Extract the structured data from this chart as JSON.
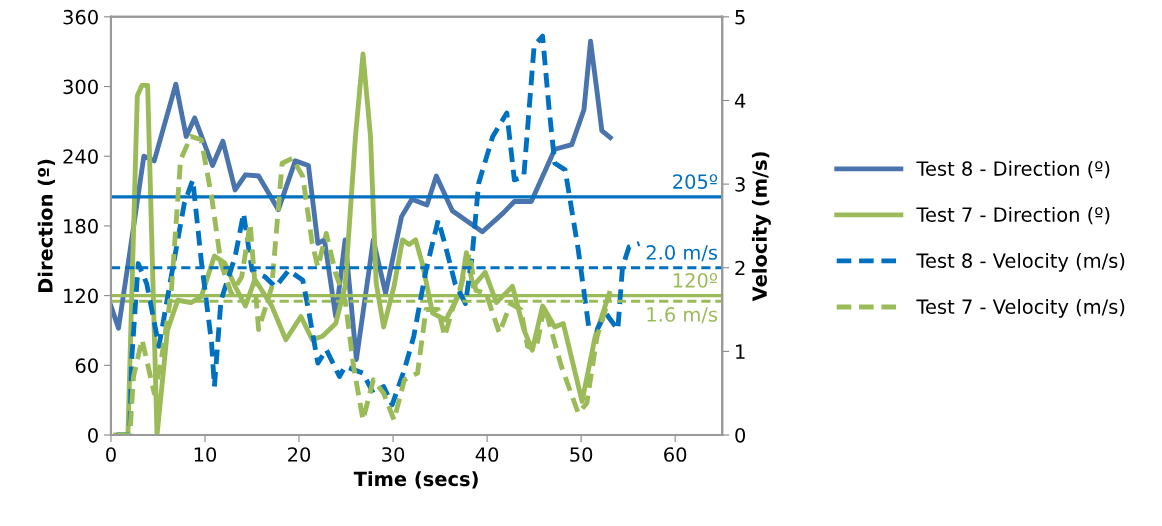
{
  "chart_data": {
    "type": "line",
    "xlabel": "Time (secs)",
    "ylabel": "Direction (º)",
    "y2label": "Velocity (m/s)",
    "xlim": [
      0,
      65
    ],
    "xticks": [
      0,
      10,
      20,
      30,
      40,
      50,
      60
    ],
    "ylim": [
      0,
      360
    ],
    "yticks": [
      0,
      60,
      120,
      180,
      240,
      300,
      360
    ],
    "y2lim": [
      0,
      5
    ],
    "y2ticks": [
      0,
      1,
      2,
      3,
      4,
      5
    ],
    "grid": false,
    "legend": "right",
    "marker": "none",
    "series": [
      {
        "name": "Test 8 - Direction (º)",
        "color": "#4a74ad",
        "line_style": "solid",
        "x": [
          0,
          0.8,
          2,
          3.5,
          4.6,
          6.9,
          8,
          8.9,
          10.8,
          11.9,
          13.2,
          14.3,
          15.7,
          17.8,
          19.6,
          21,
          22,
          22.7,
          23.9,
          24.9,
          26.1,
          27.9,
          29.2,
          30.9,
          32,
          33.6,
          34.6,
          36.3,
          37.7,
          39.5,
          41.7,
          42.9,
          44.7,
          47.2,
          49,
          50.3,
          51,
          51.7,
          52.2,
          53.1
        ],
        "values": [
          111,
          92,
          157,
          240,
          236,
          302,
          257,
          273,
          232,
          253,
          211,
          224,
          223,
          194,
          236,
          232,
          165,
          168,
          102,
          168,
          65,
          168,
          122,
          188,
          203,
          198,
          223,
          193,
          185,
          175,
          191,
          201,
          201,
          246,
          250,
          280,
          339,
          295,
          262,
          256
        ]
      },
      {
        "name": "Test 7 - Direction (º)",
        "color": "#9bbb59",
        "line_style": "solid",
        "x": [
          0.5,
          1.8,
          2.8,
          3.3,
          3.9,
          4.9,
          6,
          7.1,
          8.5,
          9.6,
          11,
          12.1,
          13.2,
          14.3,
          15.3,
          17.1,
          18.6,
          20.2,
          21.4,
          22.5,
          23.9,
          24.9,
          26,
          26.8,
          27.6,
          28.2,
          29,
          30.1,
          31,
          31.7,
          32.4,
          33.1,
          34.2,
          35.6,
          37.1,
          37.8,
          38.5,
          39.8,
          41,
          42.7,
          43.9,
          44.8,
          45.9,
          47.2,
          48.1,
          50.1,
          51.5,
          53
        ],
        "values": [
          0,
          0,
          292,
          301,
          301,
          0,
          90,
          116,
          114,
          119,
          154,
          148,
          128,
          111,
          134,
          111,
          82,
          102,
          82,
          85,
          96,
          128,
          257,
          328,
          257,
          131,
          93,
          128,
          168,
          164,
          168,
          148,
          105,
          99,
          122,
          157,
          128,
          140,
          114,
          128,
          91,
          73,
          111,
          93,
          96,
          29,
          85,
          122
        ]
      },
      {
        "name": "Test 8 - Velocity (m/s)",
        "color": "#0070c0",
        "line_style": "dashed",
        "axis": "y2",
        "x": [
          0.6,
          2,
          2.2,
          2.9,
          3.8,
          5.1,
          6.4,
          7.8,
          8.7,
          9.6,
          10.7,
          11,
          11.7,
          13.2,
          14.1,
          15,
          16.4,
          17.5,
          18.9,
          20.4,
          21,
          22,
          22.9,
          24.3,
          24.9,
          26.8,
          27.9,
          29,
          29.9,
          31.2,
          32.2,
          33.5,
          34.8,
          35.5,
          36.6,
          37.7,
          38.4,
          39.1,
          40.6,
          42.1,
          42.9,
          43.9,
          45,
          45.9,
          46.6,
          47.2,
          48.3,
          49.7,
          50.8,
          51.7,
          52.6,
          53.9,
          54.4,
          55.1,
          56.2
        ],
        "values": [
          0,
          0,
          0.9,
          2.05,
          1.81,
          1.06,
          1.89,
          2.77,
          3.05,
          2.09,
          1.1,
          0.58,
          1.61,
          2.13,
          2.65,
          1.97,
          1.89,
          1.77,
          1.97,
          1.85,
          1.5,
          0.86,
          1.02,
          0.7,
          0.82,
          0.74,
          0.5,
          0.58,
          0.36,
          0.78,
          1.18,
          1.97,
          2.57,
          2.29,
          1.81,
          1.57,
          2.13,
          3.01,
          3.57,
          3.85,
          3.05,
          3.09,
          4.65,
          4.77,
          3.89,
          3.25,
          3.17,
          2.21,
          1.3,
          1.26,
          1.46,
          1.26,
          2.01,
          2.25,
          2.29
        ]
      },
      {
        "name": "Test 7 - Velocity (m/s)",
        "color": "#9bbb59",
        "line_style": "dashed",
        "axis": "y2",
        "x": [
          0.6,
          2,
          2.4,
          3.3,
          4.6,
          5.3,
          6.4,
          7.4,
          8.5,
          9.6,
          10.7,
          11.7,
          12.8,
          13.9,
          14.8,
          15.7,
          17.1,
          18.2,
          19.3,
          20.4,
          21.4,
          22,
          22.9,
          23.9,
          24.9,
          25.8,
          26.8,
          27.9,
          29,
          30.1,
          31.2,
          32.6,
          33.5,
          34.8,
          35.5,
          36.3,
          37.3,
          38.1,
          38.8,
          39.9,
          41.3,
          42.5,
          43.6,
          44.3,
          45.2,
          46.1,
          47.9,
          49.7,
          50.6,
          51.7,
          53
        ],
        "values": [
          0,
          0,
          0.7,
          1.14,
          0.5,
          0.86,
          1.69,
          3.29,
          3.57,
          3.53,
          2.85,
          2.05,
          1.69,
          1.89,
          2.53,
          1.26,
          1.77,
          3.25,
          3.31,
          3.09,
          2.29,
          2.01,
          2.41,
          1.93,
          1.61,
          0.82,
          0.18,
          0.66,
          0.5,
          0.18,
          0.66,
          0.74,
          1.5,
          1.5,
          1.18,
          1.5,
          1.81,
          2.17,
          1.73,
          1.69,
          1.22,
          1.57,
          1.5,
          1.06,
          1.02,
          1.54,
          0.82,
          0.26,
          0.38,
          1.18,
          1.65
        ]
      }
    ],
    "ref_lines": [
      {
        "axis": "y",
        "value": 205,
        "label": "205º",
        "color": "#0070c0",
        "line_style": "solid"
      },
      {
        "axis": "y2",
        "value": 2.0,
        "label": "2.0 m/s",
        "color": "#0070c0",
        "line_style": "dashed"
      },
      {
        "axis": "y",
        "value": 120,
        "label": "120º",
        "color": "#9bbb59",
        "line_style": "solid"
      },
      {
        "axis": "y2",
        "value": 1.6,
        "label": "1.6 m/s",
        "color": "#9bbb59",
        "line_style": "dashed"
      }
    ]
  }
}
